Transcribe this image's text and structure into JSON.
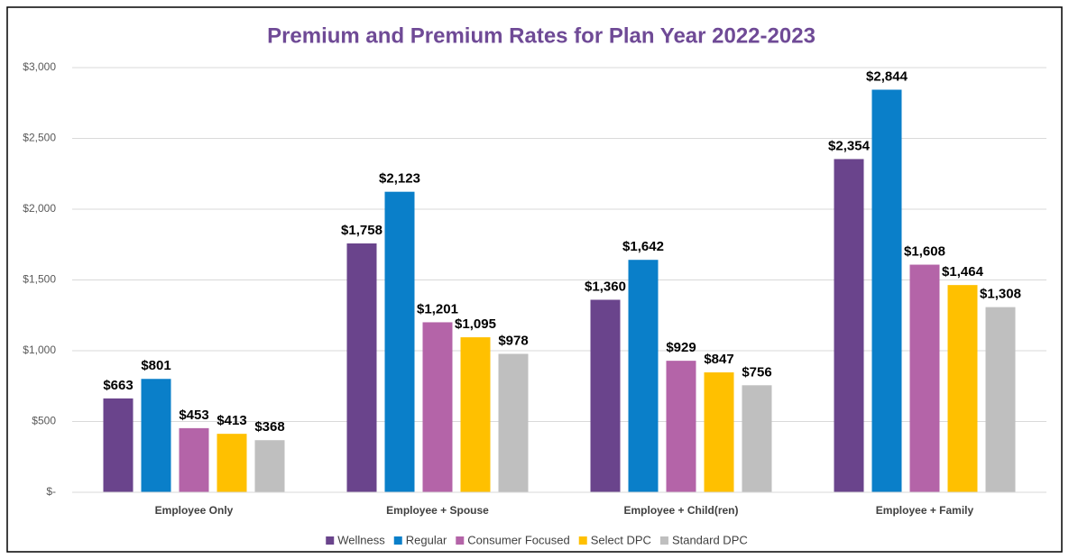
{
  "chart_data": {
    "type": "bar",
    "title": "Premium and Premium Rates for Plan Year 2022-2023",
    "categories": [
      "Employee Only",
      "Employee + Spouse",
      "Employee + Child(ren)",
      "Employee + Family"
    ],
    "series": [
      {
        "name": "Wellness",
        "color": "#6a448c",
        "values": [
          663,
          1758,
          1360,
          2354
        ],
        "value_labels": [
          "$663",
          "$1,758",
          "$1,360",
          "$2,354"
        ]
      },
      {
        "name": "Regular",
        "color": "#0a7fc9",
        "values": [
          801,
          2123,
          1642,
          2844
        ],
        "value_labels": [
          "$801",
          "$2,123",
          "$1,642",
          "$2,844"
        ]
      },
      {
        "name": "Consumer Focused",
        "color": "#b464a8",
        "values": [
          453,
          1201,
          929,
          1608
        ],
        "value_labels": [
          "$453",
          "$1,201",
          "$929",
          "$1,608"
        ]
      },
      {
        "name": "Select DPC",
        "color": "#ffc000",
        "values": [
          413,
          1095,
          847,
          1464
        ],
        "value_labels": [
          "$413",
          "$1,095",
          "$847",
          "$1,464"
        ]
      },
      {
        "name": "Standard DPC",
        "color": "#bfbfbf",
        "values": [
          368,
          978,
          756,
          1308
        ],
        "value_labels": [
          "$368",
          "$978",
          "$756",
          "$1,308"
        ]
      }
    ],
    "ylim": [
      0,
      3000
    ],
    "yticks": [
      {
        "value": 0,
        "label": "$-"
      },
      {
        "value": 500,
        "label": "$500"
      },
      {
        "value": 1000,
        "label": "$1,000"
      },
      {
        "value": 1500,
        "label": "$1,500"
      },
      {
        "value": 2000,
        "label": "$2,000"
      },
      {
        "value": 2500,
        "label": "$2,500"
      },
      {
        "value": 3000,
        "label": "$3,000"
      }
    ],
    "grid": true,
    "legend": "bottom"
  }
}
